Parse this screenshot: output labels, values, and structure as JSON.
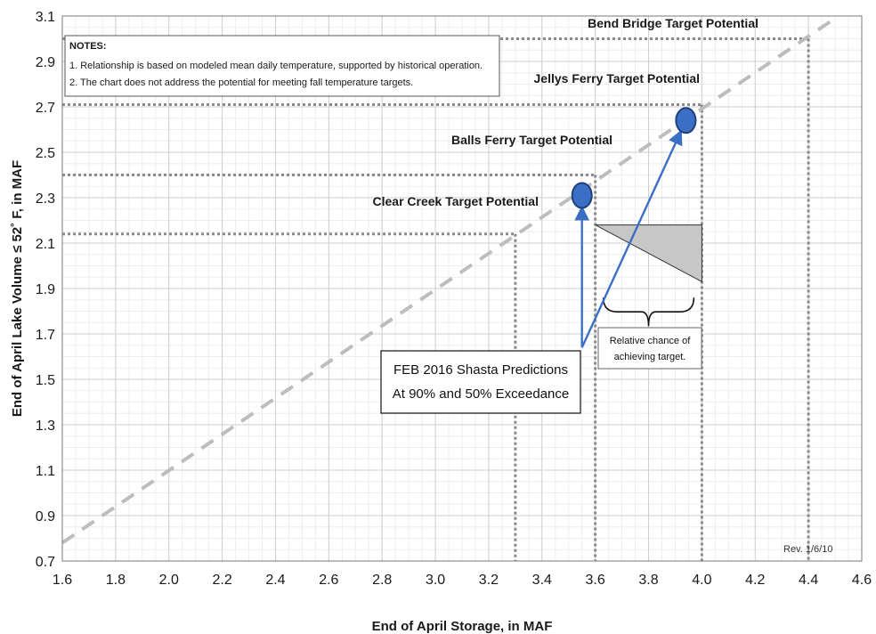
{
  "chart_data": {
    "type": "scatter",
    "title": "",
    "xlabel": "End of April Storage, in MAF",
    "ylabel": "End of April Lake Volume ≤ 52˚ F, in MAF",
    "xlim": [
      1.6,
      4.6
    ],
    "ylim": [
      0.7,
      3.1
    ],
    "xticks": [
      "1.6",
      "1.8",
      "2.0",
      "2.2",
      "2.4",
      "2.6",
      "2.8",
      "3.0",
      "3.2",
      "3.4",
      "3.6",
      "3.8",
      "4.0",
      "4.2",
      "4.4",
      "4.6"
    ],
    "yticks": [
      "0.7",
      "0.9",
      "1.1",
      "1.3",
      "1.5",
      "1.7",
      "1.9",
      "2.1",
      "2.3",
      "2.5",
      "2.7",
      "2.9",
      "3.1"
    ],
    "grid": true,
    "trend_line": {
      "x": [
        1.6,
        4.5
      ],
      "y": [
        0.78,
        3.09
      ],
      "style": "dashed",
      "color": "#bdbdbd"
    },
    "targets": [
      {
        "label": "Clear Creek Target Potential",
        "volume": 2.14,
        "storage": 3.3
      },
      {
        "label": "Balls Ferry Target Potential",
        "volume": 2.4,
        "storage": 3.6
      },
      {
        "label": "Jellys Ferry Target Potential",
        "volume": 2.71,
        "storage": 4.0
      },
      {
        "label": "Bend Bridge Target Potential",
        "volume": 3.0,
        "storage": 4.4
      }
    ],
    "points": [
      {
        "x": 3.55,
        "y": 2.31,
        "color": "#3b6fc6"
      },
      {
        "x": 3.94,
        "y": 2.64,
        "color": "#3b6fc6"
      }
    ],
    "chance_wedge": {
      "x": [
        3.6,
        4.0,
        4.0
      ],
      "y": [
        2.18,
        2.18,
        1.93
      ],
      "color": "#c7c7c7"
    },
    "arrow_origin": {
      "x": 3.55,
      "y": 1.64
    },
    "notes": {
      "title": "NOTES:",
      "lines": [
        "1. Relationship is based on modeled mean daily temperature, supported by historical operation.",
        "2. The chart does not address the potential for meeting fall temperature targets."
      ]
    },
    "prediction_box": {
      "lines": [
        "FEB 2016 Shasta Predictions",
        "At 90% and 50% Exceedance"
      ]
    },
    "relative_chance": {
      "lines": [
        "Relative chance of",
        "achieving target."
      ]
    },
    "revision": "Rev. 1/6/10"
  }
}
